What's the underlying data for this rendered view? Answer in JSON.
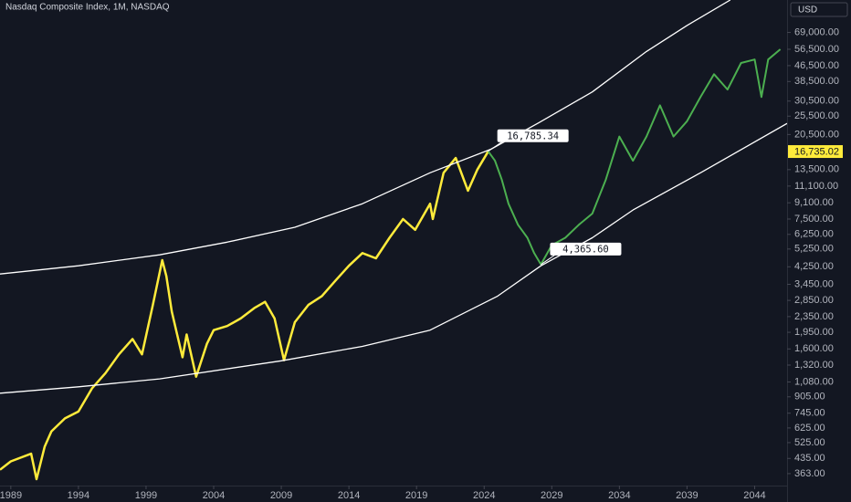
{
  "chart_data": {
    "type": "line",
    "title": "Nasdaq Composite Index, 1M, NASDAQ",
    "currency": "USD",
    "log_y": true,
    "xlim": [
      1988.2,
      2046.4
    ],
    "xticks": [
      1989,
      1994,
      1999,
      2004,
      2009,
      2014,
      2019,
      2024,
      2029,
      2034,
      2039,
      2044
    ],
    "ylim": [
      315,
      101500
    ],
    "yticks": [
      {
        "value": 363,
        "label": "363.00"
      },
      {
        "value": 435,
        "label": "435.00"
      },
      {
        "value": 525,
        "label": "525.00"
      },
      {
        "value": 625,
        "label": "625.00"
      },
      {
        "value": 745,
        "label": "745.00"
      },
      {
        "value": 905,
        "label": "905.00"
      },
      {
        "value": 1080,
        "label": "1,080.00"
      },
      {
        "value": 1320,
        "label": "1,320.00"
      },
      {
        "value": 1600,
        "label": "1,600.00"
      },
      {
        "value": 1950,
        "label": "1,950.00"
      },
      {
        "value": 2350,
        "label": "2,350.00"
      },
      {
        "value": 2850,
        "label": "2,850.00"
      },
      {
        "value": 3450,
        "label": "3,450.00"
      },
      {
        "value": 4250,
        "label": "4,250.00"
      },
      {
        "value": 5250,
        "label": "5,250.00"
      },
      {
        "value": 6250,
        "label": "6,250.00"
      },
      {
        "value": 7500,
        "label": "7,500.00"
      },
      {
        "value": 9100,
        "label": "9,100.00"
      },
      {
        "value": 11100,
        "label": "11,100.00"
      },
      {
        "value": 13500,
        "label": "13,500.00"
      },
      {
        "value": 20500,
        "label": "20,500.00"
      },
      {
        "value": 25500,
        "label": "25,500.00"
      },
      {
        "value": 30500,
        "label": "30,500.00"
      },
      {
        "value": 38500,
        "label": "38,500.00"
      },
      {
        "value": 46500,
        "label": "46,500.00"
      },
      {
        "value": 56500,
        "label": "56,500.00"
      },
      {
        "value": 69000,
        "label": "69,000.00"
      }
    ],
    "last_price": {
      "value": 16735.02,
      "label": "16,735.02",
      "color": "#ffeb3b"
    },
    "series": [
      {
        "color": "#ffeb3b",
        "width": 2.5,
        "x": [
          1988.2,
          1989,
          1990.5,
          1990.9,
          1991.5,
          1992,
          1993,
          1994,
          1995,
          1996,
          1997,
          1998,
          1998.7,
          1999.5,
          2000.2,
          2000.5,
          2000.9,
          2001.3,
          2001.7,
          2002,
          2002.7,
          2003.5,
          2004,
          2005,
          2006,
          2007,
          2007.8,
          2008.5,
          2009.2,
          2010,
          2011,
          2012,
          2013,
          2014,
          2015,
          2016,
          2017,
          2018,
          2018.9,
          2020,
          2020.2,
          2021,
          2021.9,
          2022.8,
          2023.5,
          2024.3
        ],
        "values": [
          380,
          420,
          460,
          340,
          500,
          600,
          700,
          760,
          1000,
          1200,
          1500,
          1800,
          1500,
          2700,
          4600,
          3800,
          2500,
          1900,
          1450,
          1900,
          1150,
          1700,
          2000,
          2100,
          2300,
          2600,
          2800,
          2300,
          1400,
          2200,
          2700,
          3000,
          3600,
          4300,
          5000,
          4700,
          6000,
          7500,
          6600,
          9000,
          7500,
          13000,
          15500,
          10500,
          13500,
          16785.34
        ]
      },
      {
        "color": "#4caf50",
        "width": 2,
        "x": [
          2024.3,
          2024.8,
          2025.3,
          2025.8,
          2026.5,
          2027.2,
          2027.7,
          2028.2,
          2029,
          2030,
          2031,
          2032,
          2033,
          2034,
          2035,
          2036,
          2037,
          2038,
          2039,
          2040,
          2041,
          2042,
          2043,
          2044,
          2044.5,
          2045,
          2045.9
        ],
        "values": [
          16785.34,
          15000,
          12000,
          9000,
          7000,
          6000,
          5000,
          4365.6,
          5500,
          6000,
          7000,
          8000,
          12000,
          20000,
          15000,
          20000,
          29000,
          20000,
          24000,
          32000,
          42000,
          35000,
          48000,
          50000,
          32000,
          50000,
          56500
        ]
      },
      {
        "color": "#ffffff",
        "width": 1.3,
        "x": [
          1988.2,
          1994,
          2000,
          2005,
          2010,
          2015,
          2020,
          2024.5,
          2028,
          2032,
          2036,
          2039,
          2042.2
        ],
        "values": [
          3900,
          4300,
          4900,
          5700,
          6800,
          9000,
          13000,
          17200,
          23500,
          34000,
          55000,
          75000,
          101500
        ]
      },
      {
        "color": "#ffffff",
        "width": 1.3,
        "x": [
          1988.2,
          1994,
          2000,
          2009,
          2015,
          2020,
          2025,
          2028.2,
          2032,
          2035,
          2040,
          2046.4
        ],
        "values": [
          945,
          1020,
          1120,
          1390,
          1650,
          2000,
          3000,
          4300,
          6000,
          8350,
          13000,
          23400
        ]
      }
    ],
    "annotations": [
      {
        "x": 2024.3,
        "value": 16785.34,
        "label": "16,785.34"
      },
      {
        "x": 2028.2,
        "value": 4365.6,
        "label": "4,365.60"
      }
    ]
  }
}
